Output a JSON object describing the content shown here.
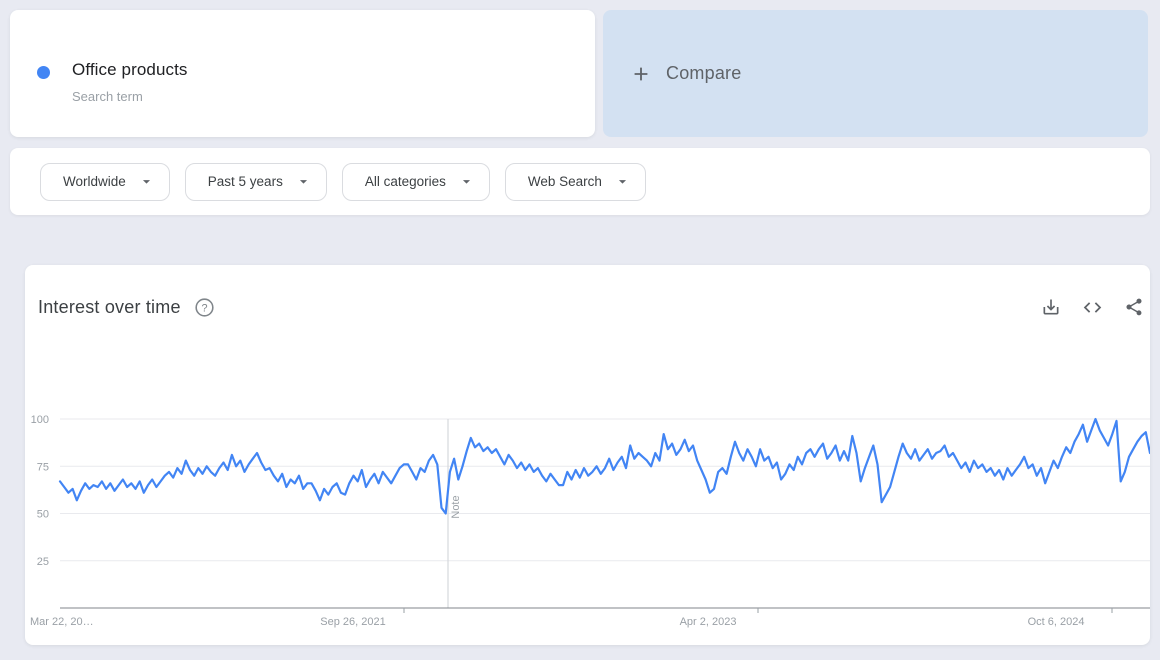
{
  "term_card": {
    "term": "Office products",
    "type_label": "Search term"
  },
  "compare_card": {
    "label": "Compare"
  },
  "filter_bar": {
    "filters": [
      {
        "value": "Worldwide"
      },
      {
        "value": "Past 5 years"
      },
      {
        "value": "All categories"
      },
      {
        "value": "Web Search"
      }
    ]
  },
  "chart_header": {
    "title": "Interest over time",
    "icons": [
      "help-icon",
      "download-icon",
      "embed-code-icon",
      "share-icon"
    ]
  },
  "chart_data": {
    "type": "line",
    "title": "Interest over time",
    "xlabel": "",
    "ylabel": "",
    "ylim": [
      0,
      100
    ],
    "grid": true,
    "y_ticks": [
      100,
      75,
      50,
      25
    ],
    "x_tick_labels": [
      "Mar 22, 20…",
      "Sep 26, 2021",
      "Apr 2, 2023",
      "Oct 6, 2024"
    ],
    "note_label": "Note",
    "series": [
      {
        "name": "Office products",
        "color": "#4285f4",
        "values": [
          67,
          64,
          61,
          63,
          57,
          62,
          66,
          63,
          65,
          64,
          67,
          63,
          66,
          62,
          65,
          68,
          64,
          66,
          63,
          67,
          61,
          65,
          68,
          64,
          67,
          70,
          72,
          69,
          74,
          71,
          78,
          73,
          70,
          74,
          71,
          75,
          72,
          70,
          74,
          77,
          73,
          81,
          75,
          78,
          72,
          76,
          79,
          82,
          77,
          73,
          74,
          70,
          67,
          71,
          64,
          68,
          66,
          70,
          63,
          66,
          66,
          62,
          57,
          63,
          60,
          64,
          66,
          61,
          60,
          66,
          70,
          67,
          73,
          64,
          68,
          71,
          66,
          72,
          69,
          66,
          70,
          74,
          76,
          76,
          72,
          68,
          74,
          72,
          78,
          81,
          76,
          53,
          50,
          72,
          79,
          68,
          75,
          83,
          90,
          85,
          87,
          83,
          85,
          82,
          84,
          80,
          76,
          81,
          78,
          74,
          77,
          73,
          76,
          72,
          74,
          70,
          67,
          71,
          68,
          65,
          65,
          72,
          68,
          73,
          69,
          74,
          70,
          72,
          75,
          71,
          74,
          79,
          73,
          77,
          80,
          74,
          86,
          79,
          82,
          80,
          78,
          75,
          82,
          78,
          92,
          84,
          87,
          81,
          84,
          89,
          83,
          86,
          78,
          73,
          68,
          61,
          63,
          72,
          74,
          71,
          80,
          88,
          82,
          78,
          84,
          80,
          75,
          84,
          78,
          80,
          74,
          77,
          68,
          71,
          76,
          73,
          80,
          76,
          82,
          84,
          80,
          84,
          87,
          79,
          82,
          86,
          78,
          83,
          78,
          91,
          82,
          67,
          74,
          80,
          86,
          76,
          56,
          60,
          64,
          72,
          80,
          87,
          82,
          79,
          84,
          78,
          81,
          84,
          79,
          82,
          83,
          86,
          80,
          82,
          78,
          74,
          77,
          72,
          78,
          74,
          76,
          72,
          74,
          70,
          73,
          68,
          74,
          70,
          73,
          76,
          80,
          74,
          76,
          70,
          74,
          66,
          72,
          78,
          74,
          80,
          85,
          82,
          88,
          92,
          97,
          88,
          94,
          100,
          94,
          90,
          86,
          92,
          99,
          67,
          72,
          80,
          84,
          88,
          91,
          93,
          82
        ]
      }
    ]
  },
  "colors": {
    "accent": "#4285f4",
    "page_bg": "#e8eaf2",
    "compare_bg": "#d3e1f2",
    "icon_gray": "#5f6368"
  }
}
